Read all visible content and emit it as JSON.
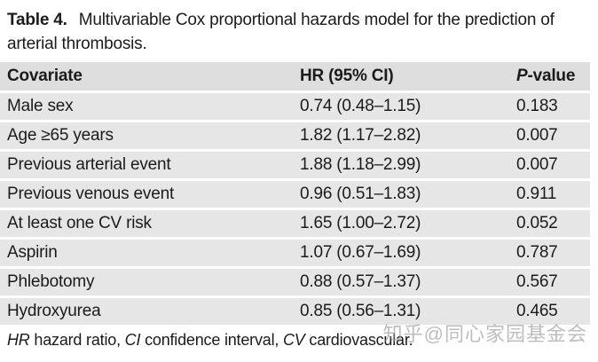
{
  "caption": {
    "label": "Table 4.",
    "text": "Multivariable Cox proportional hazards model for the prediction of arterial thrombosis."
  },
  "table": {
    "headers": {
      "covariate": "Covariate",
      "hr": "HR (95% CI)",
      "p_italic": "P",
      "p_rest": "-value"
    },
    "rows": [
      {
        "covariate": "Male sex",
        "hr_ci": "0.74 (0.48–1.15)",
        "p_value": "0.183"
      },
      {
        "covariate": "Age ≥65 years",
        "hr_ci": "1.82 (1.17–2.82)",
        "p_value": "0.007"
      },
      {
        "covariate": "Previous arterial event",
        "hr_ci": "1.88 (1.18–2.99)",
        "p_value": "0.007"
      },
      {
        "covariate": "Previous venous event",
        "hr_ci": "0.96 (0.51–1.83)",
        "p_value": "0.911"
      },
      {
        "covariate": "At least one CV risk",
        "hr_ci": "1.65 (1.00–2.72)",
        "p_value": "0.052"
      },
      {
        "covariate": "Aspirin",
        "hr_ci": "1.07 (0.67–1.69)",
        "p_value": "0.787"
      },
      {
        "covariate": "Phlebotomy",
        "hr_ci": "0.88 (0.57–1.37)",
        "p_value": "0.567"
      },
      {
        "covariate": "Hydroxyurea",
        "hr_ci": "0.85 (0.56–1.31)",
        "p_value": "0.465"
      }
    ]
  },
  "footnote": {
    "abbr1": "HR",
    "text1": " hazard ratio, ",
    "abbr2": "CI",
    "text2": " confidence interval, ",
    "abbr3": "CV",
    "text3": " cardiovascular."
  },
  "watermark": "知乎@同心家园基金会",
  "colors": {
    "row_bg": "#e6e6e6",
    "header_bg": "#dedede",
    "text": "#1b1b1b",
    "watermark": "#919191"
  }
}
